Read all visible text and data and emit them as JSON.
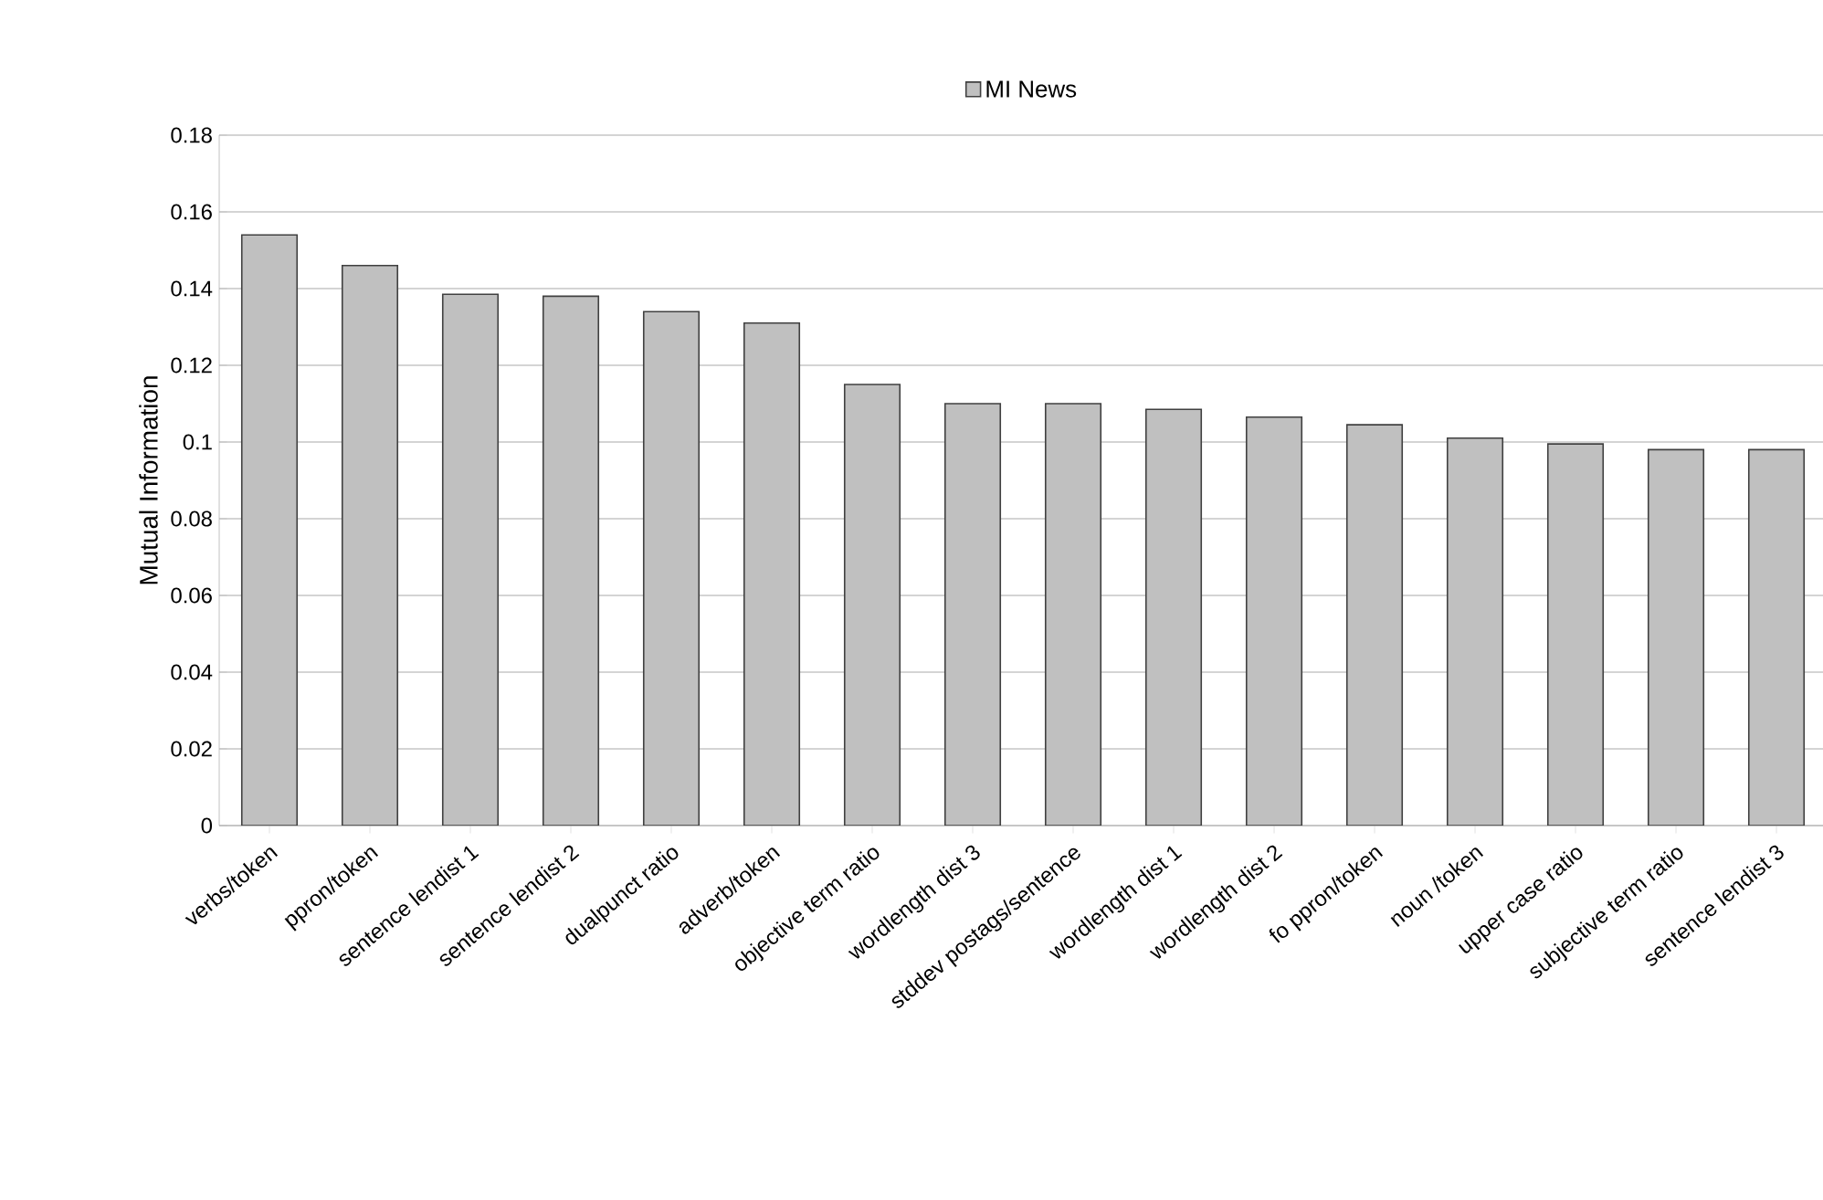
{
  "chart_data": {
    "type": "bar",
    "ylabel": "Mutual Information",
    "categories": [
      "verbs/token",
      "ppron/token",
      "sentence lendist 1",
      "sentence lendist 2",
      "dualpunct ratio",
      "adverb/token",
      "objective term ratio",
      "wordlength dist 3",
      "stddev postags/sentence",
      "wordlength dist 1",
      "wordlength dist 2",
      "fo ppron/token",
      "noun /token",
      "upper case ratio",
      "subjective term ratio",
      "sentence lendist 3"
    ],
    "series": [
      {
        "name": "MI News",
        "color": "#c0c0c0",
        "values": [
          0.154,
          0.146,
          0.1385,
          0.138,
          0.134,
          0.131,
          0.115,
          0.11,
          0.11,
          0.1085,
          0.1065,
          0.1045,
          0.101,
          0.0995,
          0.098,
          0.098
        ]
      }
    ],
    "ylim": [
      0,
      0.18
    ],
    "yticks": [
      0,
      0.02,
      0.04,
      0.06,
      0.08,
      0.1,
      0.12,
      0.14,
      0.16,
      0.18
    ],
    "grid": "y",
    "legend": "top"
  }
}
